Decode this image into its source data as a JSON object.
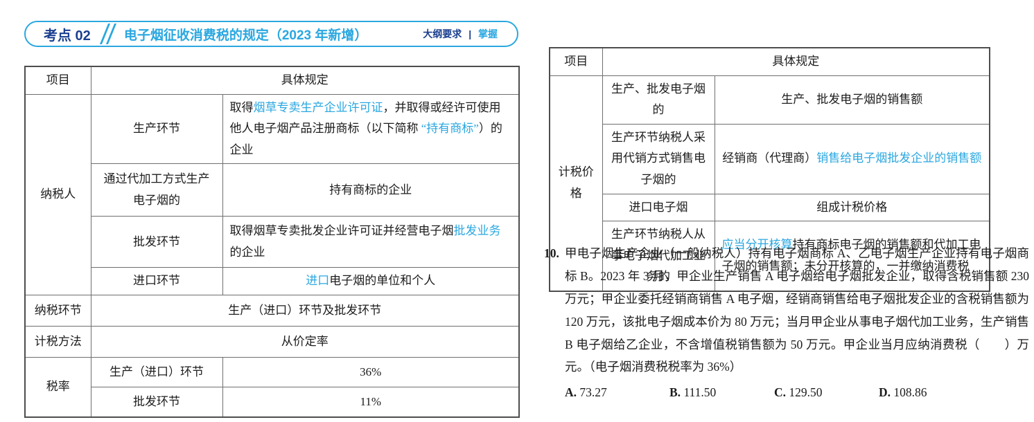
{
  "header": {
    "badge": "考点 02",
    "title": "电子烟征收消费税的规定（2023 年新增）",
    "requirement_label": "大纲要求",
    "requirement_sep": "|",
    "requirement_value": "掌握"
  },
  "colors": {
    "accent_cyan": "#2aa7e0",
    "navy": "#1a3f8f",
    "border_gray": "#6e6e6e"
  },
  "left_table": {
    "col_item": "项目",
    "col_rule": "具体规定",
    "taxpayer_label": "纳税人",
    "taxpayer_rows": [
      {
        "label": "生产环节",
        "segments": [
          {
            "t": "取得",
            "hl": false
          },
          {
            "t": "烟草专卖生产企业许可证",
            "hl": true
          },
          {
            "t": "，并取得或经许可使用他人电子烟产品注册商标（以下简称 ",
            "hl": false
          },
          {
            "t": "“持有商标”",
            "hl": true
          },
          {
            "t": "）的企业",
            "hl": false
          }
        ]
      },
      {
        "label": "通过代加工方式生产电子烟的",
        "segments": [
          {
            "t": "持有商标的企业",
            "hl": false
          }
        ]
      },
      {
        "label": "批发环节",
        "segments": [
          {
            "t": "取得烟草专卖批发企业许可证并经营电子烟",
            "hl": false
          },
          {
            "t": "批发业务",
            "hl": true
          },
          {
            "t": "的企业",
            "hl": false
          }
        ]
      },
      {
        "label": "进口环节",
        "segments": [
          {
            "t": "进口",
            "hl": true
          },
          {
            "t": "电子烟的单位和个人",
            "hl": false
          }
        ]
      }
    ],
    "simple_rows": [
      {
        "label": "纳税环节",
        "value": "生产（进口）环节及批发环节"
      },
      {
        "label": "计税方法",
        "value": "从价定率"
      }
    ],
    "rate_label": "税率",
    "rate_rows": [
      {
        "label": "生产（进口）环节",
        "value": "36%"
      },
      {
        "label": "批发环节",
        "value": "11%"
      }
    ]
  },
  "right_table": {
    "col_item": "项目",
    "col_rule": "具体规定",
    "group_label": "计税价格",
    "rows": [
      {
        "label": "生产、批发电子烟的",
        "segments": [
          {
            "t": "生产、批发电子烟的销售额",
            "hl": false
          }
        ]
      },
      {
        "label": "生产环节纳税人采用代销方式销售电子烟的",
        "segments": [
          {
            "t": "经销商（代理商）",
            "hl": false
          },
          {
            "t": "销售给电子烟批发企业的销售额",
            "hl": true
          }
        ]
      },
      {
        "label": "进口电子烟",
        "segments": [
          {
            "t": "组成计税价格",
            "hl": false
          }
        ]
      },
      {
        "label": "生产环节纳税人从事电子烟代加工业务的",
        "segments": [
          {
            "t": "应当分开核算",
            "hl": true
          },
          {
            "t": "持有商标电子烟的销售额和代加工电子烟的销售额；未分开核算的，一并缴纳消费税",
            "hl": false
          }
        ]
      }
    ]
  },
  "question": {
    "number": "10.",
    "text": "甲电子烟生产企业（一般纳税人）持有电子烟商标 A、乙电子烟生产企业持有电子烟商标 B。2023 年 3 月，甲企业生产销售 A 电子烟给电子烟批发企业，取得含税销售额 230 万元；甲企业委托经销商销售 A 电子烟，经销商销售给电子烟批发企业的含税销售额为 120 万元，该批电子烟成本价为 80 万元；当月甲企业从事电子烟代加工业务，生产销售 B 电子烟给乙企业，不含增值税销售额为 50 万元。甲企业当月应纳消费税（　　）万元。（电子烟消费税税率为 36%）",
    "options": [
      {
        "label": "A.",
        "value": "73.27"
      },
      {
        "label": "B.",
        "value": "111.50"
      },
      {
        "label": "C.",
        "value": "129.50"
      },
      {
        "label": "D.",
        "value": "108.86"
      }
    ]
  }
}
